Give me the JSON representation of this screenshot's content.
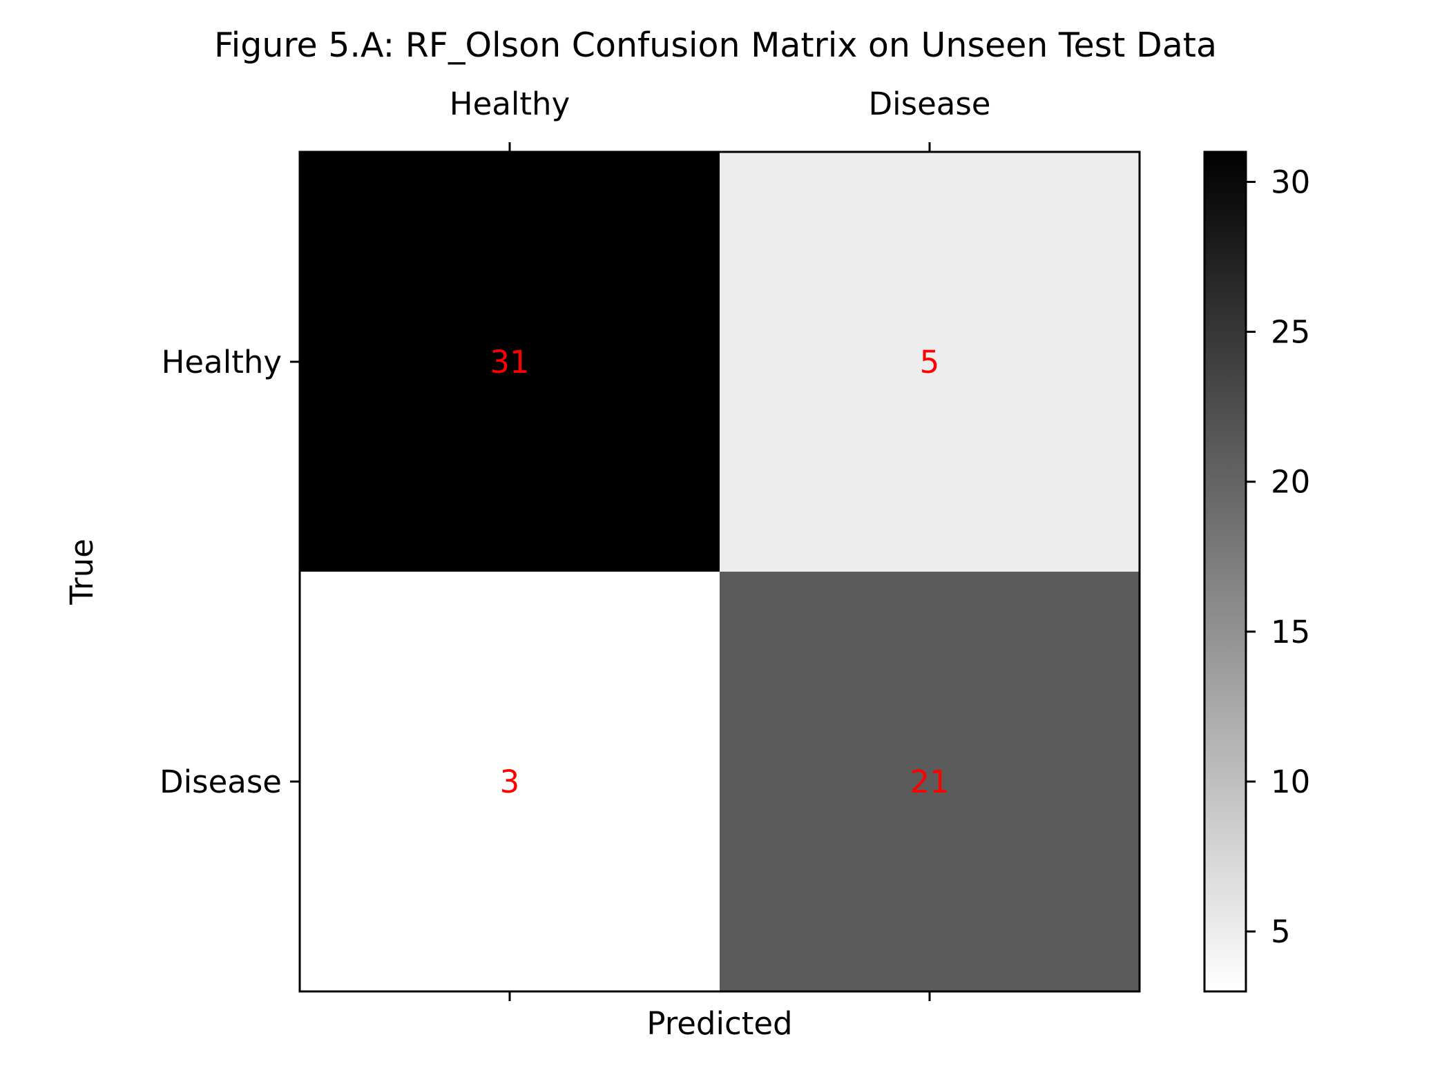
{
  "chart_data": {
    "type": "heatmap",
    "title": "Figure 5.A: RF_Olson Confusion Matrix on Unseen Test Data",
    "xlabel": "Predicted",
    "ylabel": "True",
    "x_categories": [
      "Healthy",
      "Disease"
    ],
    "y_categories": [
      "Healthy",
      "Disease"
    ],
    "values": [
      [
        31,
        5
      ],
      [
        3,
        21
      ]
    ],
    "colormap": "gray_r",
    "vmin": 3,
    "vmax": 31,
    "annotation_color": "#ff0000",
    "colorbar_ticks": [
      5,
      10,
      15,
      20,
      25,
      30
    ],
    "x_ticks_position": "top"
  }
}
